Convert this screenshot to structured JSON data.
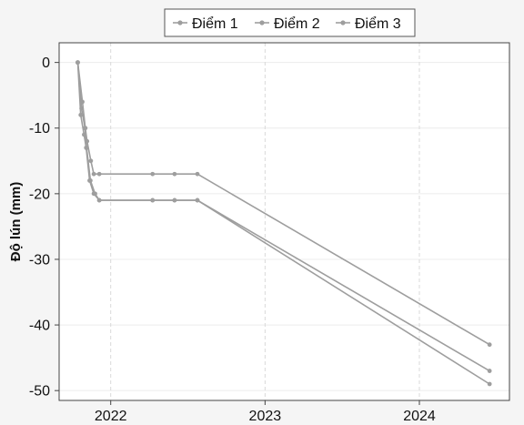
{
  "chart_data": {
    "type": "line",
    "title": "",
    "xlabel": "",
    "ylabel": "Độ lún (mm)",
    "xlim": [
      "2021-09-01",
      "2024-08-01"
    ],
    "ylim": [
      -51.5,
      3
    ],
    "yticks": [
      0,
      -10,
      -20,
      -30,
      -40,
      -50
    ],
    "yticklabels": [
      "0",
      "-10",
      "-20",
      "-30",
      "-40",
      "-50"
    ],
    "xticks": [
      "2022-01-01",
      "2023-01-01",
      "2024-01-01"
    ],
    "xticklabels": [
      "2022",
      "2023",
      "2024"
    ],
    "grid": true,
    "legend": {
      "position": "top-center",
      "entries": [
        "Điểm 1",
        "Điểm 2",
        "Điểm 3"
      ]
    },
    "colors": {
      "line": "#9e9e9e",
      "grid": "#d9d9d9",
      "frame": "#444444",
      "background": "#ffffff"
    },
    "series": [
      {
        "name": "Điểm 1",
        "points": [
          [
            "2021-10-15",
            0
          ],
          [
            "2021-10-26",
            -6
          ],
          [
            "2021-11-02",
            -10
          ],
          [
            "2021-11-06",
            -12
          ],
          [
            "2021-11-15",
            -15
          ],
          [
            "2021-11-22",
            -17
          ],
          [
            "2021-12-05",
            -17
          ],
          [
            "2022-04-10",
            -17
          ],
          [
            "2022-06-01",
            -17
          ],
          [
            "2022-07-25",
            -17
          ],
          [
            "2024-06-15",
            -43
          ]
        ]
      },
      {
        "name": "Điểm 2",
        "points": [
          [
            "2021-10-15",
            0
          ],
          [
            "2021-10-24",
            -7
          ],
          [
            "2021-11-01",
            -10
          ],
          [
            "2021-11-05",
            -13
          ],
          [
            "2021-11-14",
            -18
          ],
          [
            "2021-11-25",
            -20
          ],
          [
            "2021-12-05",
            -21
          ],
          [
            "2022-04-10",
            -21
          ],
          [
            "2022-06-01",
            -21
          ],
          [
            "2022-07-25",
            -21
          ],
          [
            "2024-06-15",
            -47
          ]
        ]
      },
      {
        "name": "Điểm 3",
        "points": [
          [
            "2021-10-15",
            0
          ],
          [
            "2021-10-22",
            -8
          ],
          [
            "2021-10-30",
            -11
          ],
          [
            "2021-11-04",
            -13
          ],
          [
            "2021-11-12",
            -18
          ],
          [
            "2021-11-22",
            -20
          ],
          [
            "2021-12-05",
            -21
          ],
          [
            "2022-04-10",
            -21
          ],
          [
            "2022-06-01",
            -21
          ],
          [
            "2022-07-25",
            -21
          ],
          [
            "2024-06-15",
            -49
          ]
        ]
      }
    ]
  }
}
